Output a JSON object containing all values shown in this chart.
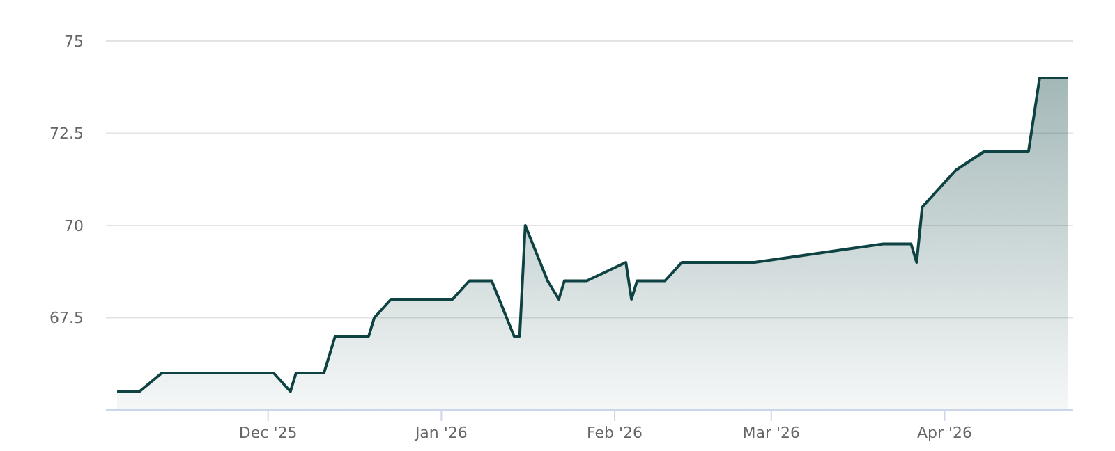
{
  "chart_data": {
    "type": "area",
    "x": [
      "2025-11-04",
      "2025-11-08",
      "2025-11-12",
      "2025-12-02",
      "2025-12-05",
      "2025-12-06",
      "2025-12-11",
      "2025-12-13",
      "2025-12-19",
      "2025-12-20",
      "2025-12-23",
      "2026-01-03",
      "2026-01-06",
      "2026-01-10",
      "2026-01-14",
      "2026-01-15",
      "2026-01-16",
      "2026-01-20",
      "2026-01-22",
      "2026-01-23",
      "2026-01-27",
      "2026-02-03",
      "2026-02-04",
      "2026-02-05",
      "2026-02-10",
      "2026-02-13",
      "2026-02-26",
      "2026-03-21",
      "2026-03-26",
      "2026-03-27",
      "2026-03-28",
      "2026-04-03",
      "2026-04-08",
      "2026-04-16",
      "2026-04-18",
      "2026-04-23"
    ],
    "series": [
      {
        "color": "#0f4343",
        "values": [
          65.5,
          65.5,
          66,
          66,
          65.5,
          66,
          66,
          67,
          67,
          67.5,
          68,
          68,
          68.5,
          68.5,
          67,
          67,
          70,
          68.5,
          68,
          68.5,
          68.5,
          69,
          68,
          68.5,
          68.5,
          69,
          69,
          69.5,
          69.5,
          69,
          70.5,
          71.5,
          72,
          72,
          74,
          74
        ]
      }
    ],
    "xlim": [
      "2025-11-02",
      "2026-04-24"
    ],
    "xticks": [
      {
        "value": "2025-12-01",
        "label": "Dec '25"
      },
      {
        "value": "2026-01-01",
        "label": "Jan '26"
      },
      {
        "value": "2026-02-01",
        "label": "Feb '26"
      },
      {
        "value": "2026-03-01",
        "label": "Mar '26"
      },
      {
        "value": "2026-04-01",
        "label": "Apr '26"
      }
    ],
    "ylim": [
      65,
      75
    ],
    "yticks": [
      67.5,
      70,
      72.5,
      75
    ],
    "grid": "y"
  }
}
